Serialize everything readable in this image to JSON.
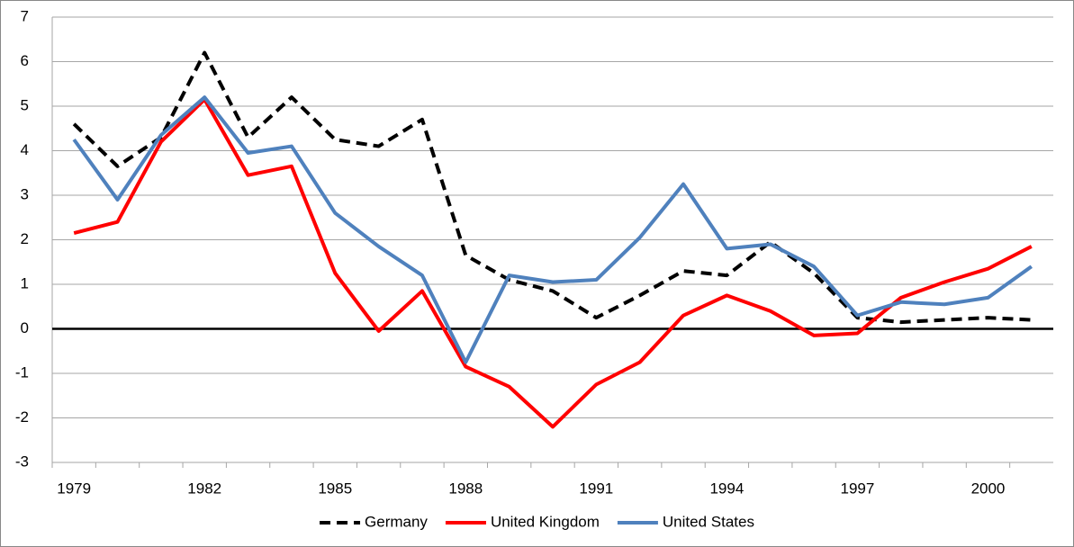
{
  "chart_data": {
    "type": "line",
    "categories": [
      "1979",
      null,
      null,
      "1982",
      null,
      null,
      "1985",
      null,
      null,
      "1988",
      null,
      null,
      "1991",
      null,
      null,
      "1994",
      null,
      null,
      "1997",
      null,
      null,
      "2000",
      null
    ],
    "series": [
      {
        "name": "Germany",
        "color": "#000000",
        "dashed": true,
        "values": [
          4.6,
          3.65,
          4.3,
          6.2,
          4.3,
          5.2,
          4.25,
          4.1,
          4.7,
          1.65,
          1.1,
          0.85,
          0.25,
          0.75,
          1.3,
          1.2,
          1.95,
          1.25,
          0.25,
          0.15,
          0.2,
          0.25,
          0.2
        ]
      },
      {
        "name": "United Kingdom",
        "color": "#ff0000",
        "dashed": false,
        "values": [
          2.15,
          2.4,
          4.2,
          5.15,
          3.45,
          3.65,
          1.25,
          -0.05,
          0.85,
          -0.85,
          -1.3,
          -2.2,
          -1.25,
          -0.75,
          0.3,
          0.75,
          0.4,
          -0.15,
          -0.1,
          0.7,
          1.05,
          1.35,
          1.85
        ]
      },
      {
        "name": "United States",
        "color": "#4f81bd",
        "dashed": false,
        "values": [
          4.25,
          2.9,
          4.35,
          5.2,
          3.95,
          4.1,
          2.6,
          1.85,
          1.2,
          -0.75,
          1.2,
          1.05,
          1.1,
          2.05,
          3.25,
          1.8,
          1.9,
          1.4,
          0.3,
          0.6,
          0.55,
          0.7,
          1.4
        ]
      }
    ],
    "ylim": [
      -3,
      7
    ],
    "yticks": [
      -3,
      -2,
      -1,
      0,
      1,
      2,
      3,
      4,
      5,
      6,
      7
    ],
    "grid": true,
    "legend": "bottom"
  }
}
